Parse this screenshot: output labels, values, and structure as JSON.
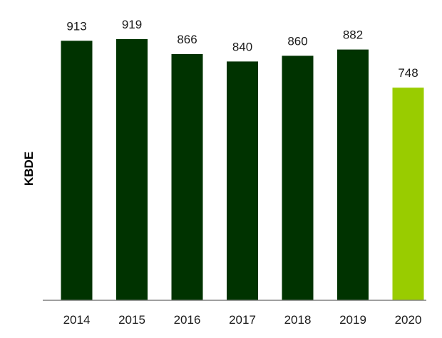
{
  "chart_data": {
    "type": "bar",
    "categories": [
      "2014",
      "2015",
      "2016",
      "2017",
      "2018",
      "2019",
      "2020"
    ],
    "values": [
      913,
      919,
      866,
      840,
      860,
      882,
      748
    ],
    "data_labels": [
      "913",
      "919",
      "866",
      "840",
      "860",
      "882",
      "748"
    ],
    "ylabel": "KBDE",
    "xlabel": "",
    "ylim": [
      0,
      1050
    ],
    "grid": false,
    "colors": {
      "default_bar": "#003300",
      "highlight_bar": "#99cc00",
      "axis": "#808080",
      "text": "#1a1a1a"
    },
    "highlight_category": "2020"
  }
}
